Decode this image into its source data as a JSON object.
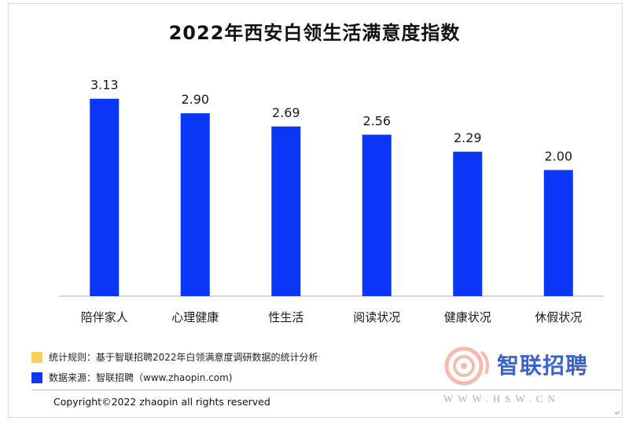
{
  "chart_data": {
    "type": "bar",
    "title": "2022年西安白领生活满意度指数",
    "categories": [
      "陪伴家人",
      "心理健康",
      "性生活",
      "阅读状况",
      "健康状况",
      "休假状况"
    ],
    "values": [
      3.13,
      2.9,
      2.69,
      2.56,
      2.29,
      2.0
    ],
    "value_labels": [
      "3.13",
      "2.90",
      "2.69",
      "2.56",
      "2.29",
      "2.00"
    ],
    "ylim": [
      0,
      3.6
    ],
    "xlabel": "",
    "ylabel": "",
    "grid": false,
    "bar_color": "#0a36f5"
  },
  "legend": {
    "rule_label": "统计规则：基于智联招聘2022年白领满意度调研数据的统计分析",
    "rule_color": "#f7cf5a",
    "source_label": "数据来源：智联招聘（www.zhaopin.com)",
    "source_color": "#0a36f5"
  },
  "footer": {
    "copyright": "Copyright©2022 zhaopin all rights reserved"
  },
  "watermark": {
    "brand": "智联招聘",
    "url": "WWW.HSW.CN",
    "icon": "hsw-logo-icon"
  }
}
